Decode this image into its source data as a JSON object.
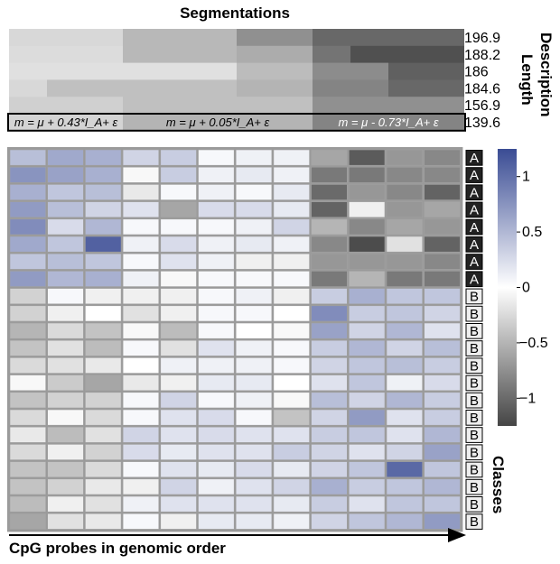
{
  "title": "Segmentations",
  "xlabel": "CpG probes in genomic order",
  "dl_label_line1": "Description",
  "dl_label_line2": "Length",
  "classes_label": "Classes",
  "chart_data": [
    {
      "type": "heatmap",
      "name_shown": "Segmentations",
      "ylabel": "Description Length",
      "row_values": [
        "196.9",
        "188.2",
        "186",
        "184.6",
        "156.9",
        "139.6"
      ],
      "columns": 12,
      "grayscale_levels_0_dark_to_1_light": [
        [
          0.88,
          0.88,
          0.88,
          0.72,
          0.72,
          0.72,
          0.52,
          0.52,
          0.32,
          0.32,
          0.32,
          0.32
        ],
        [
          0.9,
          0.9,
          0.9,
          0.72,
          0.72,
          0.72,
          0.66,
          0.66,
          0.38,
          0.2,
          0.2,
          0.2
        ],
        [
          0.92,
          0.92,
          0.92,
          0.92,
          0.92,
          0.92,
          0.74,
          0.74,
          0.5,
          0.5,
          0.28,
          0.28
        ],
        [
          0.88,
          0.76,
          0.76,
          0.76,
          0.76,
          0.76,
          0.7,
          0.7,
          0.46,
          0.46,
          0.32,
          0.32
        ],
        [
          0.84,
          0.84,
          0.84,
          0.76,
          0.76,
          0.76,
          0.76,
          0.76,
          0.52,
          0.52,
          0.52,
          0.52
        ],
        [
          0.86,
          0.86,
          0.86,
          0.7,
          0.7,
          0.7,
          0.7,
          0.7,
          0.46,
          0.46,
          0.46,
          0.46
        ]
      ],
      "annotations": [
        {
          "text": "m = μ + 0.43*I_A+ ε",
          "columns": [
            0,
            2
          ]
        },
        {
          "text": "m = μ + 0.05*I_A+ ε",
          "columns": [
            3,
            7
          ]
        },
        {
          "text": "m = μ - 0.73*I_A+ ε",
          "columns": [
            8,
            11
          ]
        }
      ]
    },
    {
      "type": "heatmap",
      "xlabel": "CpG probes in genomic order",
      "row_classes": [
        "A",
        "A",
        "A",
        "A",
        "A",
        "A",
        "A",
        "A",
        "B",
        "B",
        "B",
        "B",
        "B",
        "B",
        "B",
        "B",
        "B",
        "B",
        "B",
        "B",
        "B",
        "B"
      ],
      "colorbar": {
        "ticks": [
          1,
          0.5,
          0,
          -0.5,
          -1
        ],
        "tick_labels": [
          "1",
          "0.5",
          "0",
          "−0.5",
          "−1"
        ],
        "range": [
          -1.25,
          1.25
        ]
      },
      "values": [
        [
          0.45,
          0.6,
          0.55,
          0.3,
          0.35,
          0.05,
          0.1,
          0.1,
          -0.6,
          -1.1,
          -0.7,
          -0.8
        ],
        [
          0.75,
          0.65,
          0.55,
          -0.05,
          0.35,
          0.1,
          0.15,
          0.1,
          -0.9,
          -0.9,
          -0.8,
          -0.8
        ],
        [
          0.55,
          0.4,
          0.45,
          -0.15,
          0.05,
          0.1,
          0.05,
          0.15,
          -1.0,
          -0.7,
          -0.8,
          -1.05
        ],
        [
          0.7,
          0.45,
          0.3,
          0.2,
          -0.6,
          0.25,
          0.25,
          0.15,
          -1.05,
          -0.1,
          -0.7,
          -0.6
        ],
        [
          0.8,
          0.25,
          0.5,
          0.05,
          0.05,
          0.05,
          0.1,
          0.3,
          -0.5,
          -0.8,
          -0.6,
          -0.7
        ],
        [
          0.6,
          0.4,
          1.1,
          0.1,
          0.25,
          0.1,
          0.15,
          0.1,
          -0.8,
          -1.2,
          -0.2,
          -1.05
        ],
        [
          0.4,
          0.45,
          0.4,
          0.05,
          0.2,
          0.1,
          -0.1,
          -0.1,
          -0.7,
          -0.7,
          -0.7,
          -0.8
        ],
        [
          0.7,
          0.5,
          0.55,
          0.1,
          -0.05,
          0.05,
          0.05,
          0.05,
          -0.9,
          -0.5,
          -0.9,
          -0.9
        ],
        [
          -0.3,
          0.05,
          -0.1,
          -0.1,
          -0.1,
          0.05,
          0.1,
          -0.1,
          0.35,
          0.55,
          0.4,
          0.4
        ],
        [
          -0.3,
          -0.1,
          0.0,
          -0.2,
          -0.1,
          0.05,
          0.05,
          0.0,
          0.8,
          0.35,
          0.4,
          0.3
        ],
        [
          -0.5,
          -0.25,
          -0.4,
          -0.05,
          -0.45,
          0.05,
          0.0,
          -0.05,
          0.65,
          0.3,
          0.5,
          0.2
        ],
        [
          -0.4,
          -0.2,
          -0.45,
          0.05,
          -0.2,
          0.2,
          0.1,
          0.05,
          0.35,
          0.5,
          0.3,
          0.45
        ],
        [
          -0.25,
          -0.2,
          -0.15,
          0.0,
          0.1,
          0.1,
          0.1,
          0.05,
          0.3,
          0.4,
          0.45,
          0.35
        ],
        [
          -0.05,
          -0.35,
          -0.6,
          -0.15,
          -0.1,
          0.15,
          0.15,
          0.0,
          0.2,
          0.4,
          0.1,
          0.25
        ],
        [
          -0.4,
          -0.3,
          -0.3,
          0.05,
          0.3,
          0.05,
          0.1,
          -0.05,
          0.45,
          0.3,
          0.5,
          0.35
        ],
        [
          -0.25,
          -0.05,
          -0.25,
          0.05,
          0.2,
          0.25,
          0.05,
          -0.4,
          0.3,
          0.7,
          0.2,
          0.35
        ],
        [
          -0.15,
          -0.45,
          -0.2,
          0.3,
          0.2,
          0.25,
          0.2,
          0.2,
          0.35,
          0.4,
          0.2,
          0.5
        ],
        [
          -0.25,
          -0.1,
          -0.3,
          0.25,
          0.15,
          0.2,
          0.2,
          0.35,
          0.3,
          0.2,
          0.3,
          0.65
        ],
        [
          -0.4,
          -0.4,
          -0.25,
          0.05,
          0.2,
          0.15,
          0.25,
          0.15,
          0.3,
          0.4,
          1.05,
          0.4
        ],
        [
          -0.4,
          -0.3,
          -0.15,
          -0.1,
          0.3,
          0.1,
          0.2,
          0.3,
          0.55,
          0.35,
          0.4,
          0.5
        ],
        [
          -0.45,
          -0.1,
          -0.2,
          0.1,
          0.2,
          0.2,
          0.2,
          0.15,
          0.35,
          0.2,
          0.4,
          0.4
        ],
        [
          -0.6,
          -0.2,
          -0.15,
          0.05,
          -0.1,
          0.15,
          0.15,
          0.1,
          0.3,
          0.4,
          0.5,
          0.7
        ]
      ]
    }
  ]
}
